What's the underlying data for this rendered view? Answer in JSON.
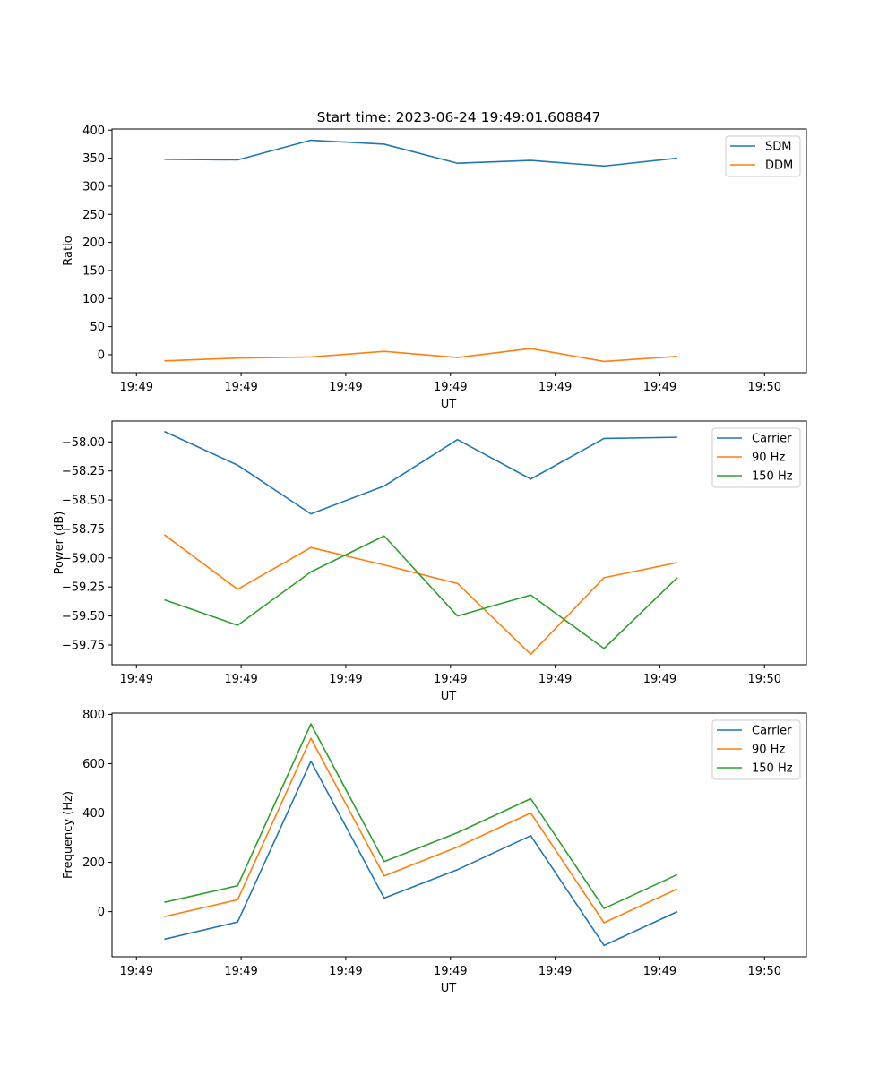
{
  "figure": {
    "title": "Start time: 2023-06-24 19:49:01.608847"
  },
  "chart_data": [
    {
      "type": "line",
      "title": "Start time: 2023-06-24 19:49:01.608847",
      "xlabel": "UT",
      "ylabel": "Ratio",
      "x_tick_labels": [
        "19:49",
        "19:49",
        "19:49",
        "19:49",
        "19:49",
        "19:49",
        "19:50"
      ],
      "y_ticks": [
        0,
        50,
        100,
        150,
        200,
        250,
        300,
        350,
        400
      ],
      "ylim": [
        -32,
        402
      ],
      "xlim": [
        -0.35,
        9.6
      ],
      "x": [
        0.4,
        1.45,
        2.5,
        3.55,
        4.6,
        5.65,
        6.7,
        7.75
      ],
      "series": [
        {
          "name": "SDM",
          "color": "#1f77b4",
          "values": [
            348,
            347,
            382,
            375,
            341,
            346,
            336,
            350
          ]
        },
        {
          "name": "DDM",
          "color": "#ff7f0e",
          "values": [
            -11,
            -6,
            -4,
            6,
            -5,
            11,
            -12,
            -3
          ]
        }
      ],
      "legend": "upper-right",
      "grid": false
    },
    {
      "type": "line",
      "xlabel": "UT",
      "ylabel": "Power (dB)",
      "x_tick_labels": [
        "19:49",
        "19:49",
        "19:49",
        "19:49",
        "19:49",
        "19:49",
        "19:50"
      ],
      "y_ticks": [
        -59.75,
        -59.5,
        -59.25,
        -59.0,
        -58.75,
        -58.5,
        -58.25,
        -58.0
      ],
      "y_tick_labels": [
        "−59.75",
        "−59.50",
        "−59.25",
        "−59.00",
        "−58.75",
        "−58.50",
        "−58.25",
        "−58.00"
      ],
      "ylim": [
        -59.92,
        -57.82
      ],
      "xlim": [
        -0.35,
        9.6
      ],
      "x": [
        0.4,
        1.45,
        2.5,
        3.55,
        4.6,
        5.65,
        6.7,
        7.75
      ],
      "series": [
        {
          "name": "Carrier",
          "color": "#1f77b4",
          "values": [
            -57.91,
            -58.2,
            -58.62,
            -58.38,
            -57.98,
            -58.32,
            -57.97,
            -57.96
          ]
        },
        {
          "name": "90 Hz",
          "color": "#ff7f0e",
          "values": [
            -58.8,
            -59.27,
            -58.91,
            -59.06,
            -59.22,
            -59.83,
            -59.17,
            -59.04
          ]
        },
        {
          "name": "150 Hz",
          "color": "#2ca02c",
          "values": [
            -59.36,
            -59.58,
            -59.12,
            -58.81,
            -59.5,
            -59.32,
            -59.78,
            -59.17
          ]
        }
      ],
      "legend": "upper-right",
      "grid": false
    },
    {
      "type": "line",
      "xlabel": "UT",
      "ylabel": "Frequency (Hz)",
      "x_tick_labels": [
        "19:49",
        "19:49",
        "19:49",
        "19:49",
        "19:49",
        "19:49",
        "19:50"
      ],
      "y_ticks": [
        0,
        200,
        400,
        600,
        800
      ],
      "ylim": [
        -183,
        805
      ],
      "xlim": [
        -0.35,
        9.6
      ],
      "x": [
        0.4,
        1.45,
        2.5,
        3.55,
        4.6,
        5.65,
        6.7,
        7.75
      ],
      "series": [
        {
          "name": "Carrier",
          "color": "#1f77b4",
          "values": [
            -112,
            -42,
            610,
            55,
            170,
            308,
            -137,
            0
          ]
        },
        {
          "name": "90 Hz",
          "color": "#ff7f0e",
          "values": [
            -20,
            48,
            703,
            145,
            262,
            400,
            -45,
            92
          ]
        },
        {
          "name": "150 Hz",
          "color": "#2ca02c",
          "values": [
            38,
            105,
            761,
            203,
            320,
            458,
            13,
            150
          ]
        }
      ],
      "legend": "upper-right",
      "grid": false
    }
  ]
}
